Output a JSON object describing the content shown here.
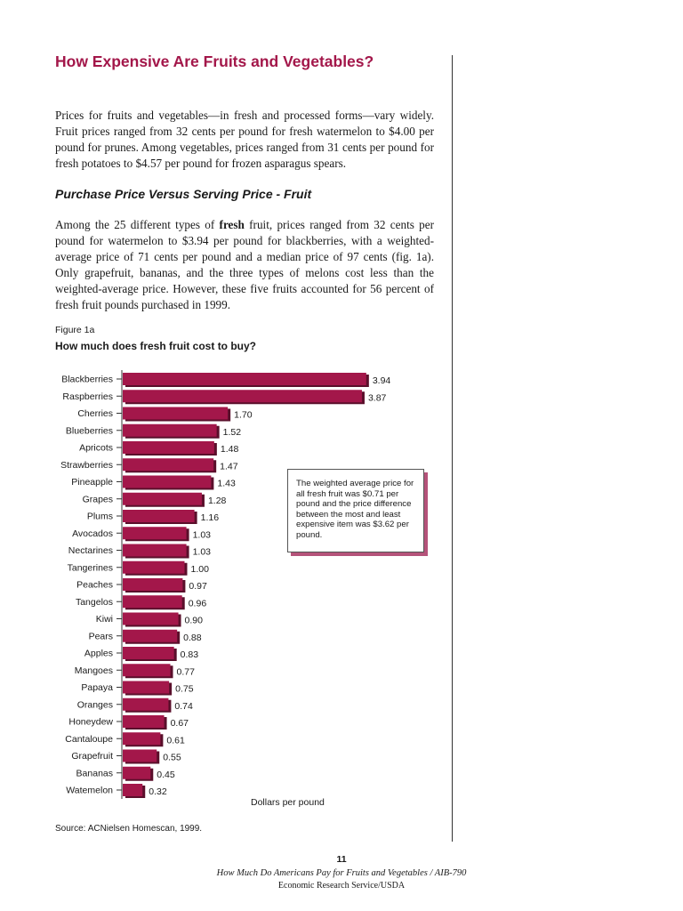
{
  "page": {
    "title": "How Expensive Are Fruits and Vegetables?",
    "intro": "Prices for fruits and vegetables—in fresh and processed forms—vary widely. Fruit prices ranged from 32 cents per pound for fresh watermelon to $4.00 per pound for prunes. Among vegetables, prices ranged from 31 cents per pound for fresh potatoes to $4.57 per pound for frozen asparagus spears.",
    "subheading": "Purchase Price Versus Serving Price - Fruit",
    "fruit_para": {
      "before": "Among the 25 different types of ",
      "emphasis": "fresh",
      "after": " fruit, prices ranged from 32 cents per pound for watermelon to $3.94 per pound for blackberries, with a weighted-average price of 71 cents per pound and a median price of 97 cents (fig. 1a). Only grapefruit, bananas, and the three types of melons cost less than the weighted-average price. However, these five fruits accounted for 56 percent of fresh fruit pounds purchased in 1999."
    },
    "figure_label": "Figure 1a",
    "figure_title": "How much does fresh fruit cost to buy?",
    "annotation": "The weighted average price for all fresh fruit was $0.71 per pound and the price difference between the most and least expensive item was $3.62 per pound.",
    "source": "Source:  ACNielsen Homescan, 1999.",
    "page_number": "11",
    "footer_title": "How Much Do Americans Pay for Fruits and Vegetables / AIB-790",
    "footer_org": "Economic Research Service/USDA"
  },
  "colors": {
    "accent": "#a3174a",
    "bar": "#a3174a"
  },
  "chart_data": {
    "type": "bar",
    "orientation": "horizontal",
    "title": "How much does fresh fruit cost to buy?",
    "xlabel": "Dollars per pound",
    "ylabel": "",
    "xlim": [
      0,
      4.2
    ],
    "grid": false,
    "categories": [
      "Blackberries",
      "Raspberries",
      "Cherries",
      "Blueberries",
      "Apricots",
      "Strawberries",
      "Pineapple",
      "Grapes",
      "Plums",
      "Avocados",
      "Nectarines",
      "Tangerines",
      "Peaches",
      "Tangelos",
      "Kiwi",
      "Pears",
      "Apples",
      "Mangoes",
      "Papaya",
      "Oranges",
      "Honeydew",
      "Cantaloupe",
      "Grapefruit",
      "Bananas",
      "Watemelon"
    ],
    "values": [
      3.94,
      3.87,
      1.7,
      1.52,
      1.48,
      1.47,
      1.43,
      1.28,
      1.16,
      1.03,
      1.03,
      1.0,
      0.97,
      0.96,
      0.9,
      0.88,
      0.83,
      0.77,
      0.75,
      0.74,
      0.67,
      0.61,
      0.55,
      0.45,
      0.32
    ],
    "value_labels": [
      "3.94",
      "3.87",
      "1.70",
      "1.52",
      "1.48",
      "1.47",
      "1.43",
      "1.28",
      "1.16",
      "1.03",
      "1.03",
      "1.00",
      "0.97",
      "0.96",
      "0.90",
      "0.88",
      "0.83",
      "0.77",
      "0.75",
      "0.74",
      "0.67",
      "0.61",
      "0.55",
      "0.45",
      "0.32"
    ]
  }
}
